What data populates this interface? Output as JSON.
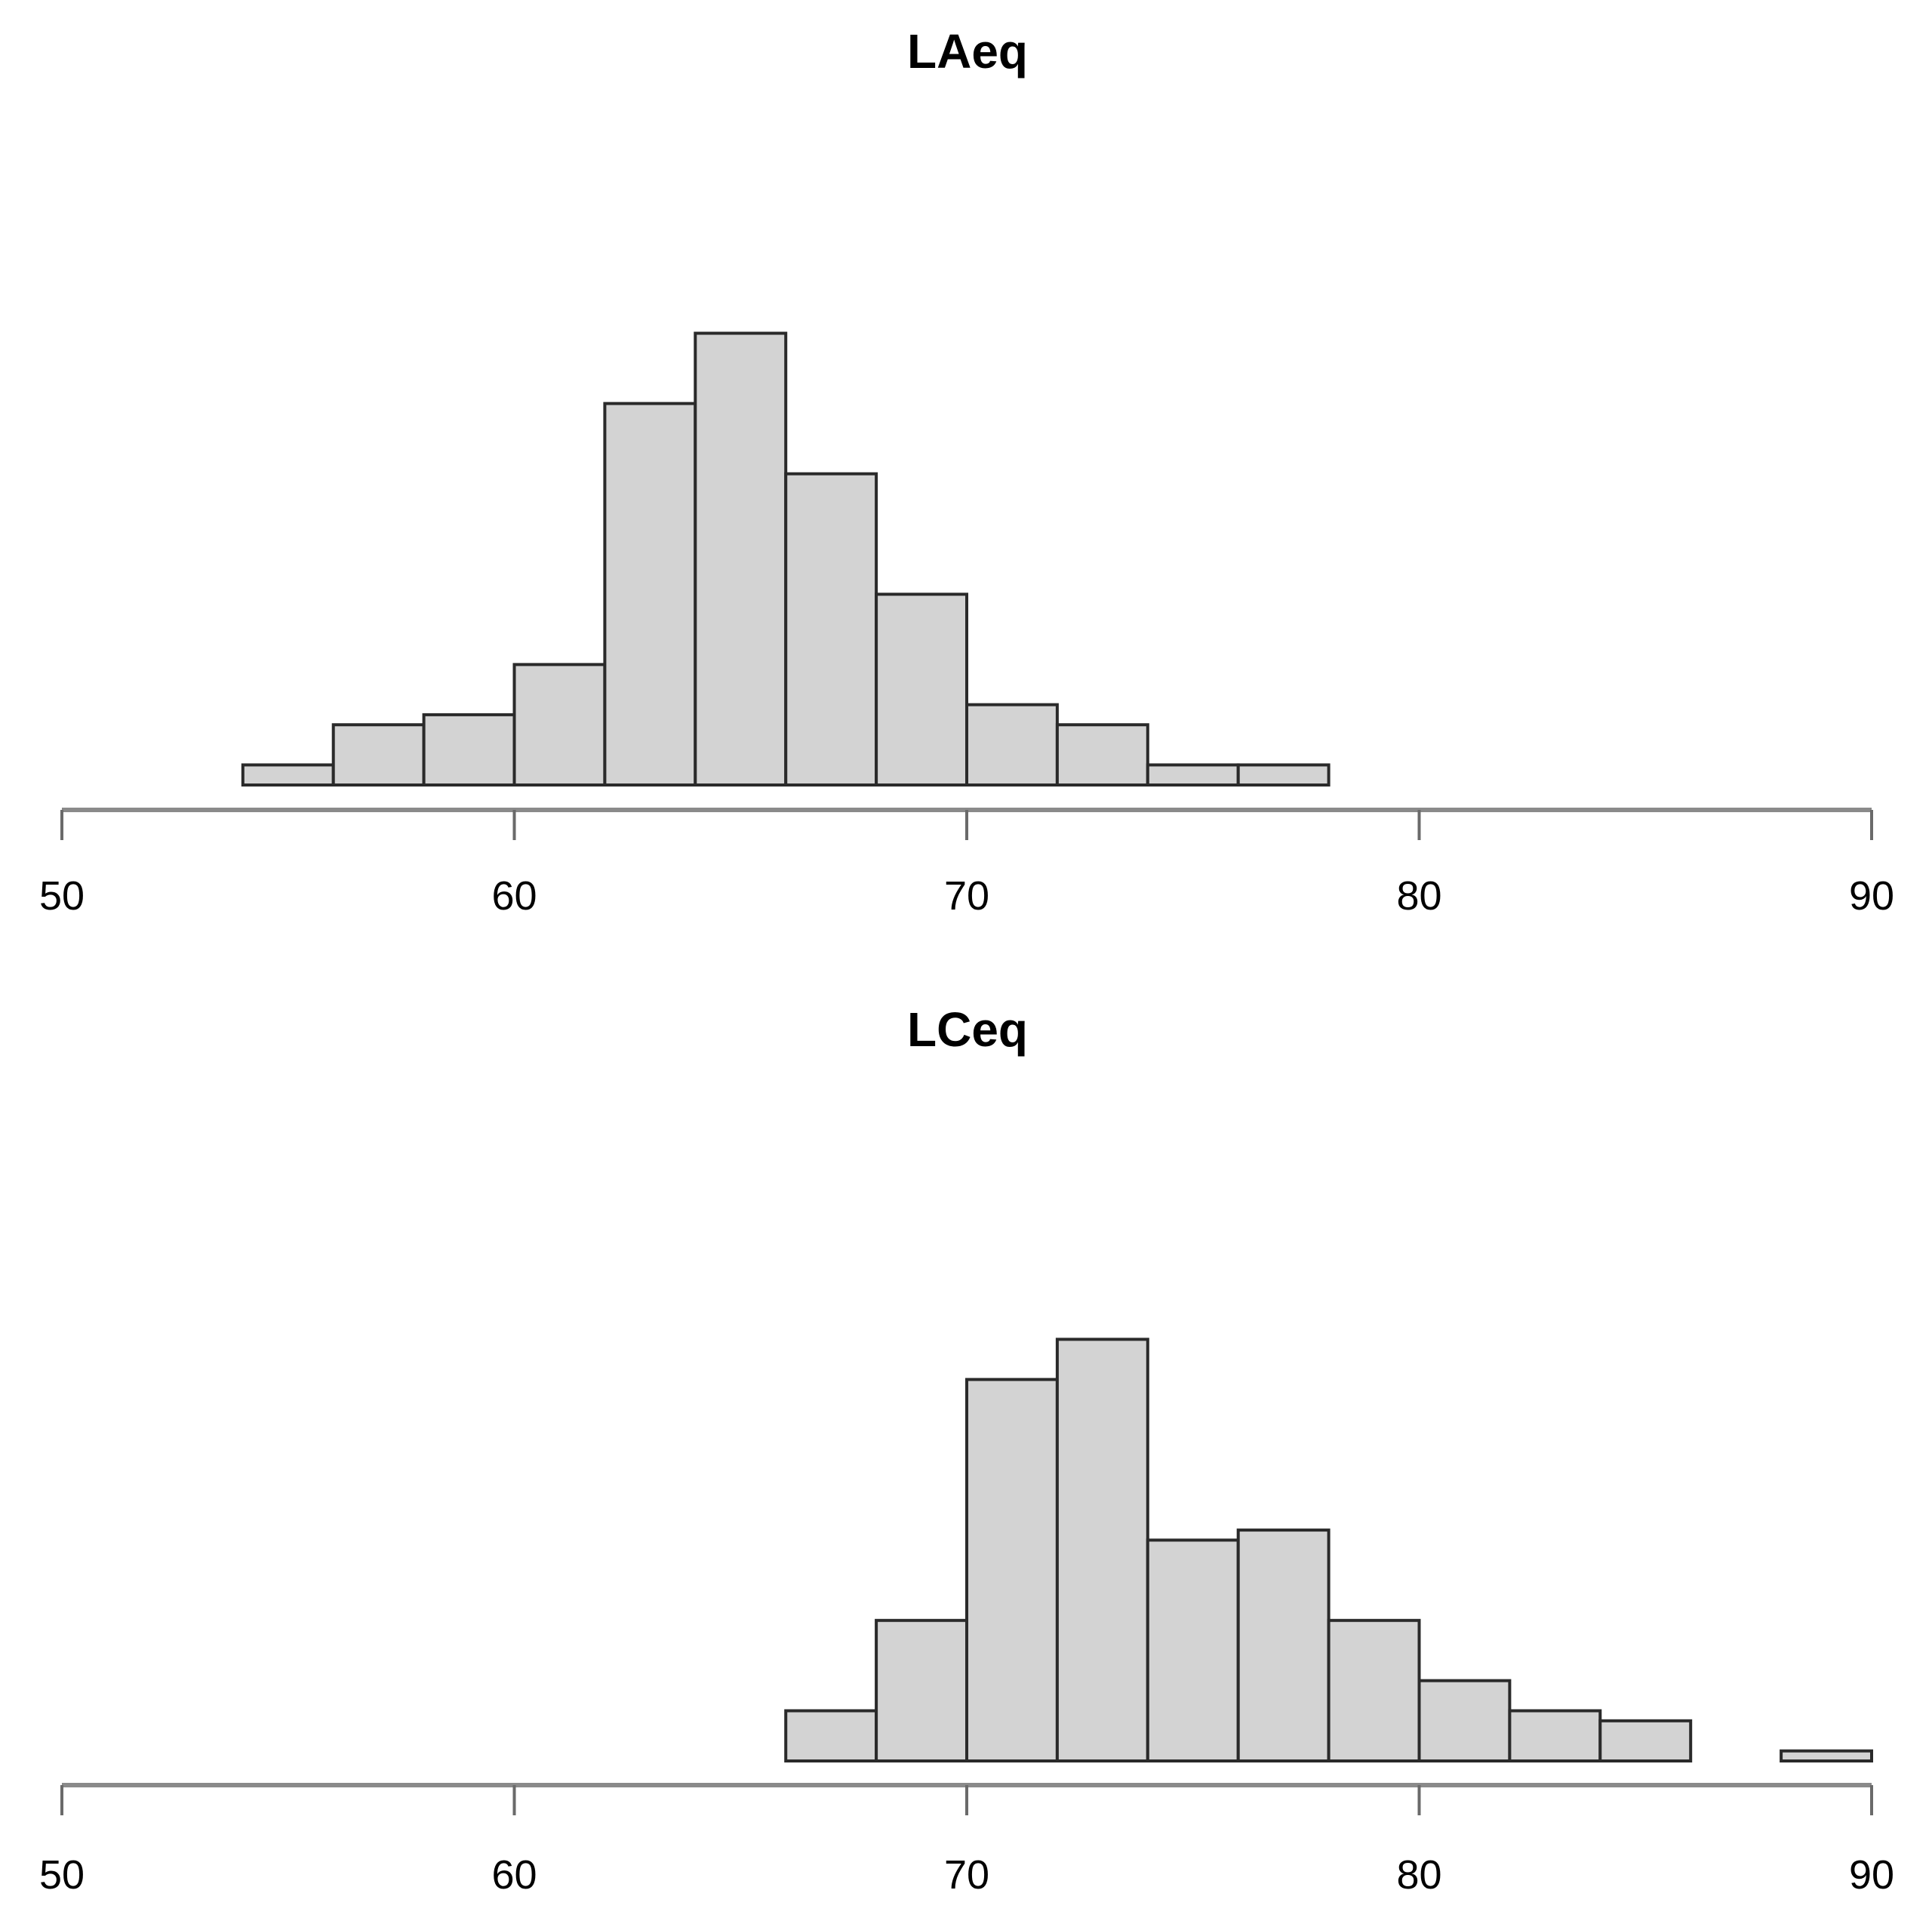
{
  "chart_data": [
    {
      "type": "bar",
      "subtype": "histogram",
      "title": "LAeq",
      "xlabel": "",
      "ylabel": "",
      "xlim": [
        50,
        90
      ],
      "xticks": [
        50,
        60,
        70,
        80,
        90
      ],
      "bin_edges": [
        54,
        56,
        58,
        60,
        62,
        64,
        66,
        68,
        70,
        72,
        74,
        76,
        78
      ],
      "values": [
        1,
        3,
        3.5,
        6,
        19,
        22.5,
        15.5,
        9.5,
        4,
        3,
        1,
        1
      ],
      "grid": false,
      "y_axis_shown": false,
      "colors": {
        "fill": "#d3d3d3",
        "stroke": "#2a2a2a",
        "axis": "#8a8a8a"
      }
    },
    {
      "type": "bar",
      "subtype": "histogram",
      "title": "LCeq",
      "xlabel": "",
      "ylabel": "",
      "xlim": [
        50,
        90
      ],
      "xticks": [
        50,
        60,
        70,
        80,
        90
      ],
      "bin_edges": [
        66,
        68,
        70,
        72,
        74,
        76,
        78,
        80,
        82,
        84,
        86,
        88,
        90
      ],
      "values": [
        2.5,
        7,
        19,
        21,
        11,
        11.5,
        7,
        4,
        2.5,
        2,
        0,
        0.5
      ],
      "grid": false,
      "y_axis_shown": false,
      "colors": {
        "fill": "#d3d3d3",
        "stroke": "#2a2a2a",
        "axis": "#8a8a8a"
      }
    }
  ]
}
